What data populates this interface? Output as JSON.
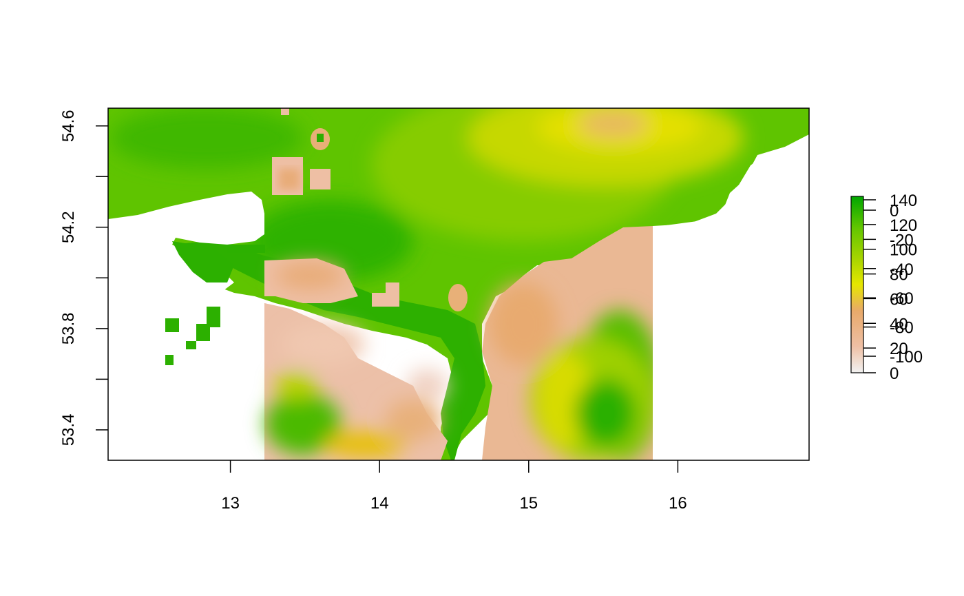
{
  "map": {
    "x_ticks": [
      "13",
      "14",
      "15",
      "16"
    ],
    "y_ticks": [
      "53.4",
      "53.8",
      "54.2",
      "54.6"
    ],
    "x_range": [
      12.18,
      16.88
    ],
    "y_range": [
      53.28,
      54.67
    ],
    "colors": {
      "low": "#f2f2f2",
      "pink": "#eebfa4",
      "tan": "#e8a96a",
      "yellow": "#e6e600",
      "yellow_green": "#a6d400",
      "green": "#63c600",
      "dark_green": "#00a600"
    }
  },
  "legend": {
    "scale_a_labels": [
      "140",
      "120",
      "100",
      "80",
      "60",
      "40",
      "20",
      "0"
    ],
    "scale_b_labels": [
      "0",
      "-20",
      "-40",
      "-60",
      "-80",
      "-100"
    ]
  }
}
